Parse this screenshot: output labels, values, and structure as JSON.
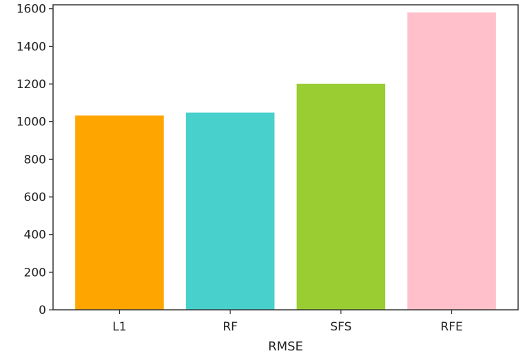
{
  "chart_data": {
    "type": "bar",
    "categories": [
      "L1",
      "RF",
      "SFS",
      "RFE"
    ],
    "values": [
      1033,
      1048,
      1201,
      1580
    ],
    "colors": [
      "#ffa500",
      "#48d1cc",
      "#9acd32",
      "#ffc0cb"
    ],
    "xlabel": "RMSE",
    "ylabel": "",
    "ylim": [
      0,
      1600
    ],
    "yticks": [
      0,
      200,
      400,
      600,
      800,
      1000,
      1200,
      1400,
      1600
    ],
    "grid": false,
    "legend": "none"
  }
}
